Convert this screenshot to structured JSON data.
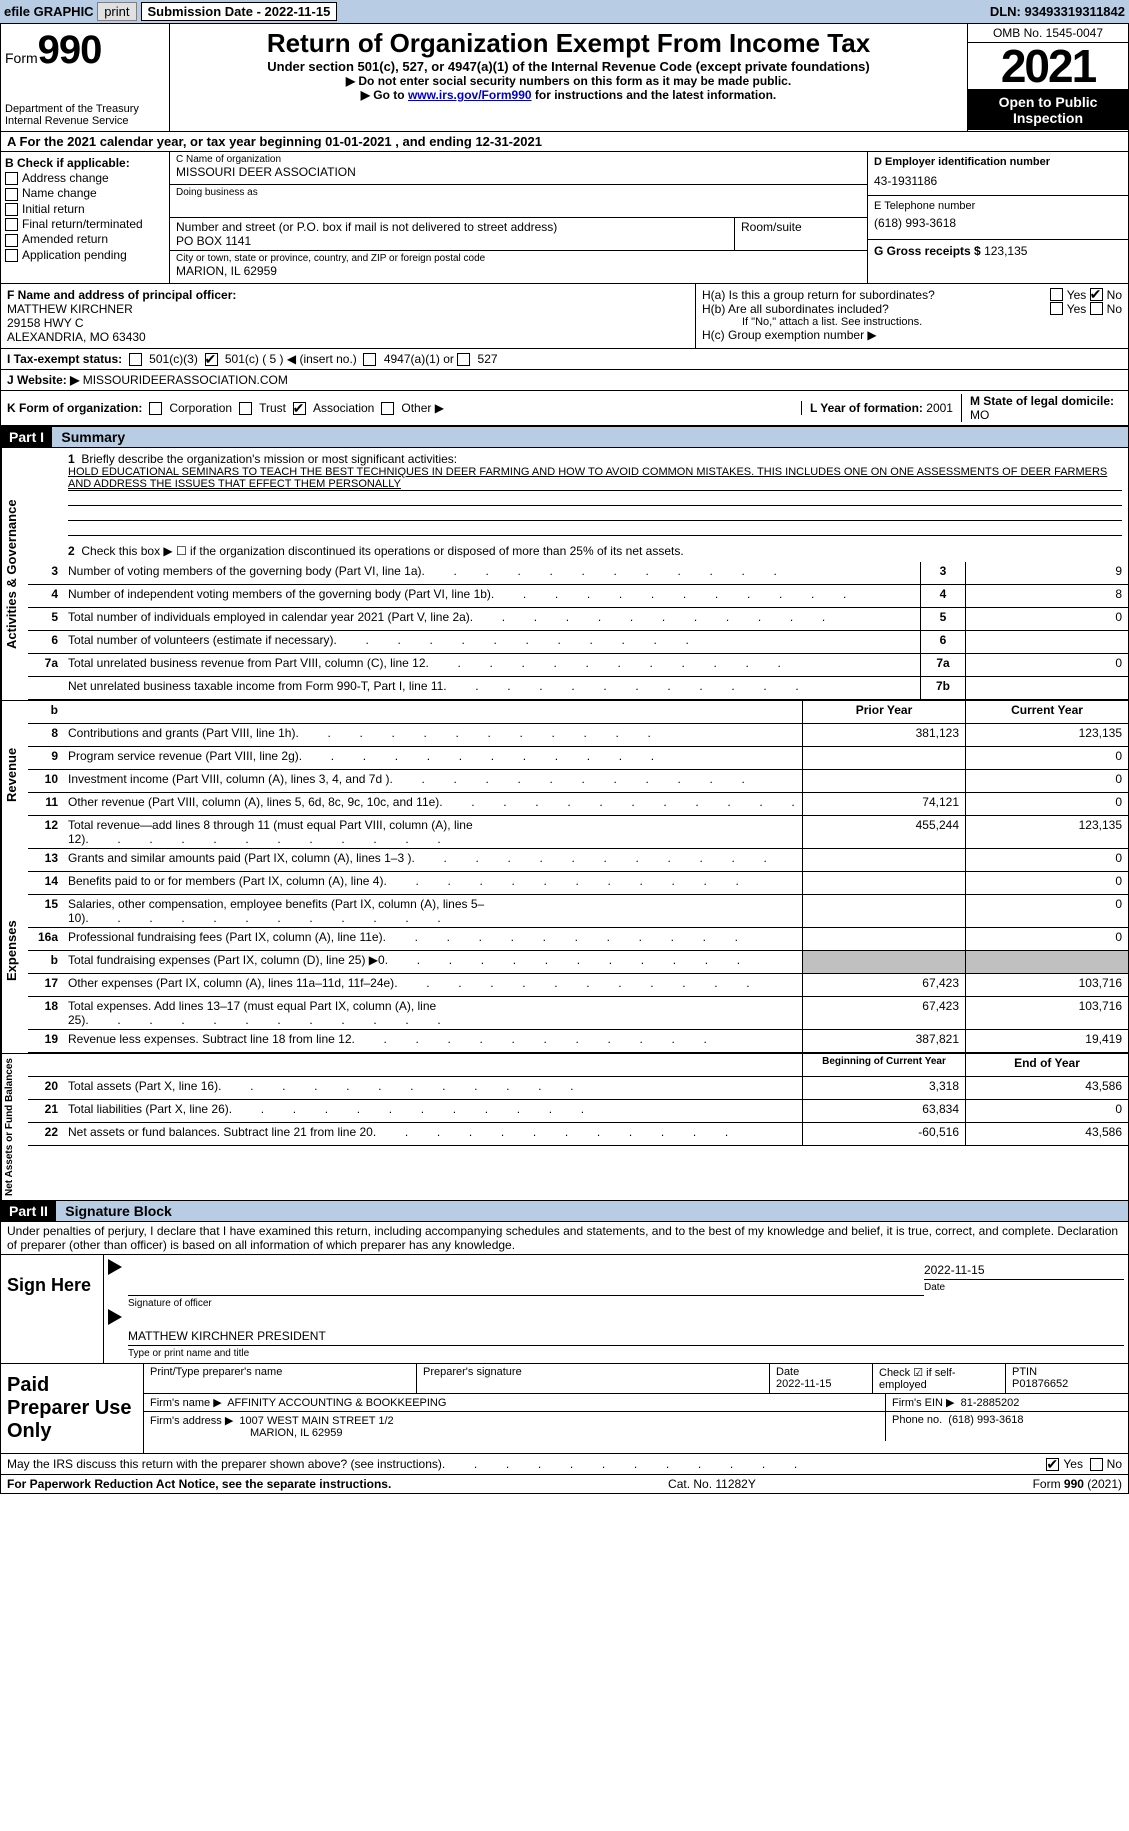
{
  "colors": {
    "header_bg": "#b8cce4",
    "link": "#0000cc",
    "black": "#000000",
    "shade": "#c0c0c0"
  },
  "topbar": {
    "efile": "efile GRAPHIC",
    "print": "print",
    "sub_label": "Submission Date - 2022-11-15",
    "dln": "DLN: 93493319311842"
  },
  "header": {
    "form_prefix": "Form",
    "form_number": "990",
    "dept": "Department of the Treasury",
    "irs": "Internal Revenue Service",
    "title": "Return of Organization Exempt From Income Tax",
    "subtitle": "Under section 501(c), 527, or 4947(a)(1) of the Internal Revenue Code (except private foundations)",
    "note1": "▶ Do not enter social security numbers on this form as it may be made public.",
    "note2_a": "▶ Go to ",
    "note2_link": "www.irs.gov/Form990",
    "note2_b": " for instructions and the latest information.",
    "omb": "OMB No. 1545-0047",
    "year": "2021",
    "open": "Open to Public Inspection"
  },
  "rowA": {
    "text_a": "A For the 2021 calendar year, or tax year beginning ",
    "begin": "01-01-2021",
    "text_b": "   , and ending ",
    "end": "12-31-2021"
  },
  "colB": {
    "label": "B Check if applicable:",
    "items": [
      "Address change",
      "Name change",
      "Initial return",
      "Final return/terminated",
      "Amended return",
      "Application pending"
    ]
  },
  "colC": {
    "name_lbl": "C Name of organization",
    "name": "MISSOURI DEER ASSOCIATION",
    "dba_lbl": "Doing business as",
    "dba": "",
    "street_lbl": "Number and street (or P.O. box if mail is not delivered to street address)",
    "street": "PO BOX 1141",
    "room_lbl": "Room/suite",
    "city_lbl": "City or town, state or province, country, and ZIP or foreign postal code",
    "city": "MARION, IL  62959"
  },
  "colD": {
    "ein_lbl": "D Employer identification number",
    "ein": "43-1931186",
    "tel_lbl": "E Telephone number",
    "tel": "(618) 993-3618",
    "gross_lbl": "G Gross receipts $",
    "gross": "123,135"
  },
  "rowF": {
    "lbl": "F Name and address of principal officer:",
    "name": "MATTHEW KIRCHNER",
    "addr1": "29158 HWY C",
    "addr2": "ALEXANDRIA, MO  63430"
  },
  "rowH": {
    "ha": "H(a)  Is this a group return for subordinates?",
    "hb": "H(b)  Are all subordinates included?",
    "hb_note": "If \"No,\" attach a list. See instructions.",
    "hc": "H(c)  Group exemption number ▶",
    "yes": "Yes",
    "no": "No"
  },
  "rowI": {
    "lbl": "I   Tax-exempt status:",
    "c3": "501(c)(3)",
    "c": "501(c) ( 5 ) ◀ (insert no.)",
    "a947": "4947(a)(1) or",
    "s527": "527"
  },
  "rowJ": {
    "lbl": "J   Website: ▶",
    "val": "MISSOURIDEERASSOCIATION.COM"
  },
  "rowK": {
    "lbl": "K Form of organization:",
    "corp": "Corporation",
    "trust": "Trust",
    "assoc": "Association",
    "other": "Other ▶",
    "l_lbl": "L Year of formation:",
    "l_val": "2001",
    "m_lbl": "M State of legal domicile:",
    "m_val": "MO"
  },
  "part1": {
    "hdr": "Part I",
    "title": "Summary",
    "q1": "Briefly describe the organization's mission or most significant activities:",
    "mission": "HOLD EDUCATIONAL SEMINARS TO TEACH THE BEST TECHNIQUES IN DEER FARMING AND HOW TO AVOID COMMON MISTAKES. THIS INCLUDES ONE ON ONE ASSESSMENTS OF DEER FARMERS AND ADDRESS THE ISSUES THAT EFFECT THEM PERSONALLY",
    "q2": "Check this box ▶ ☐ if the organization discontinued its operations or disposed of more than 25% of its net assets.",
    "lines_ag": [
      {
        "n": "3",
        "t": "Number of voting members of the governing body (Part VI, line 1a)",
        "bn": "3",
        "v": "9"
      },
      {
        "n": "4",
        "t": "Number of independent voting members of the governing body (Part VI, line 1b)",
        "bn": "4",
        "v": "8"
      },
      {
        "n": "5",
        "t": "Total number of individuals employed in calendar year 2021 (Part V, line 2a)",
        "bn": "5",
        "v": "0"
      },
      {
        "n": "6",
        "t": "Total number of volunteers (estimate if necessary)",
        "bn": "6",
        "v": ""
      },
      {
        "n": "7a",
        "t": "Total unrelated business revenue from Part VIII, column (C), line 12",
        "bn": "7a",
        "v": "0"
      },
      {
        "n": "",
        "t": "Net unrelated business taxable income from Form 990-T, Part I, line 11",
        "bn": "7b",
        "v": ""
      }
    ],
    "col_prior": "Prior Year",
    "col_curr": "Current Year",
    "revenue": [
      {
        "n": "8",
        "t": "Contributions and grants (Part VIII, line 1h)",
        "p": "381,123",
        "c": "123,135"
      },
      {
        "n": "9",
        "t": "Program service revenue (Part VIII, line 2g)",
        "p": "",
        "c": "0"
      },
      {
        "n": "10",
        "t": "Investment income (Part VIII, column (A), lines 3, 4, and 7d )",
        "p": "",
        "c": "0"
      },
      {
        "n": "11",
        "t": "Other revenue (Part VIII, column (A), lines 5, 6d, 8c, 9c, 10c, and 11e)",
        "p": "74,121",
        "c": "0"
      },
      {
        "n": "12",
        "t": "Total revenue—add lines 8 through 11 (must equal Part VIII, column (A), line 12)",
        "p": "455,244",
        "c": "123,135"
      }
    ],
    "expenses": [
      {
        "n": "13",
        "t": "Grants and similar amounts paid (Part IX, column (A), lines 1–3 )",
        "p": "",
        "c": "0"
      },
      {
        "n": "14",
        "t": "Benefits paid to or for members (Part IX, column (A), line 4)",
        "p": "",
        "c": "0"
      },
      {
        "n": "15",
        "t": "Salaries, other compensation, employee benefits (Part IX, column (A), lines 5–10)",
        "p": "",
        "c": "0"
      },
      {
        "n": "16a",
        "t": "Professional fundraising fees (Part IX, column (A), line 11e)",
        "p": "",
        "c": "0"
      },
      {
        "n": "b",
        "t": "Total fundraising expenses (Part IX, column (D), line 25) ▶0",
        "p": "shade",
        "c": "shade"
      },
      {
        "n": "17",
        "t": "Other expenses (Part IX, column (A), lines 11a–11d, 11f–24e)",
        "p": "67,423",
        "c": "103,716"
      },
      {
        "n": "18",
        "t": "Total expenses. Add lines 13–17 (must equal Part IX, column (A), line 25)",
        "p": "67,423",
        "c": "103,716"
      },
      {
        "n": "19",
        "t": "Revenue less expenses. Subtract line 18 from line 12",
        "p": "387,821",
        "c": "19,419"
      }
    ],
    "col_begin": "Beginning of Current Year",
    "col_end": "End of Year",
    "netassets": [
      {
        "n": "20",
        "t": "Total assets (Part X, line 16)",
        "p": "3,318",
        "c": "43,586"
      },
      {
        "n": "21",
        "t": "Total liabilities (Part X, line 26)",
        "p": "63,834",
        "c": "0"
      },
      {
        "n": "22",
        "t": "Net assets or fund balances. Subtract line 21 from line 20",
        "p": "-60,516",
        "c": "43,586"
      }
    ],
    "tab_ag": "Activities & Governance",
    "tab_rev": "Revenue",
    "tab_exp": "Expenses",
    "tab_net": "Net Assets or Fund Balances"
  },
  "part2": {
    "hdr": "Part II",
    "title": "Signature Block",
    "decl": "Under penalties of perjury, I declare that I have examined this return, including accompanying schedules and statements, and to the best of my knowledge and belief, it is true, correct, and complete. Declaration of preparer (other than officer) is based on all information of which preparer has any knowledge.",
    "sign_here": "Sign Here",
    "sig_officer": "Signature of officer",
    "sig_date": "2022-11-15",
    "date_lbl": "Date",
    "name_title": "MATTHEW KIRCHNER  PRESIDENT",
    "type_lbl": "Type or print name and title",
    "paid": "Paid Preparer Use Only",
    "pt_name_lbl": "Print/Type preparer's name",
    "pt_sig_lbl": "Preparer's signature",
    "pt_date_lbl": "Date",
    "pt_date": "2022-11-15",
    "pt_check": "Check ☑ if self-employed",
    "ptin_lbl": "PTIN",
    "ptin": "P01876652",
    "firm_name_lbl": "Firm's name      ▶",
    "firm_name": "AFFINITY ACCOUNTING & BOOKKEEPING",
    "firm_ein_lbl": "Firm's EIN ▶",
    "firm_ein": "81-2885202",
    "firm_addr_lbl": "Firm's address ▶",
    "firm_addr1": "1007 WEST MAIN STREET 1/2",
    "firm_addr2": "MARION, IL  62959",
    "phone_lbl": "Phone no.",
    "phone": "(618) 993-3618",
    "may_irs": "May the IRS discuss this return with the preparer shown above? (see instructions)",
    "yes": "Yes",
    "no": "No"
  },
  "footer": {
    "pra": "For Paperwork Reduction Act Notice, see the separate instructions.",
    "cat": "Cat. No. 11282Y",
    "form": "Form 990 (2021)"
  }
}
